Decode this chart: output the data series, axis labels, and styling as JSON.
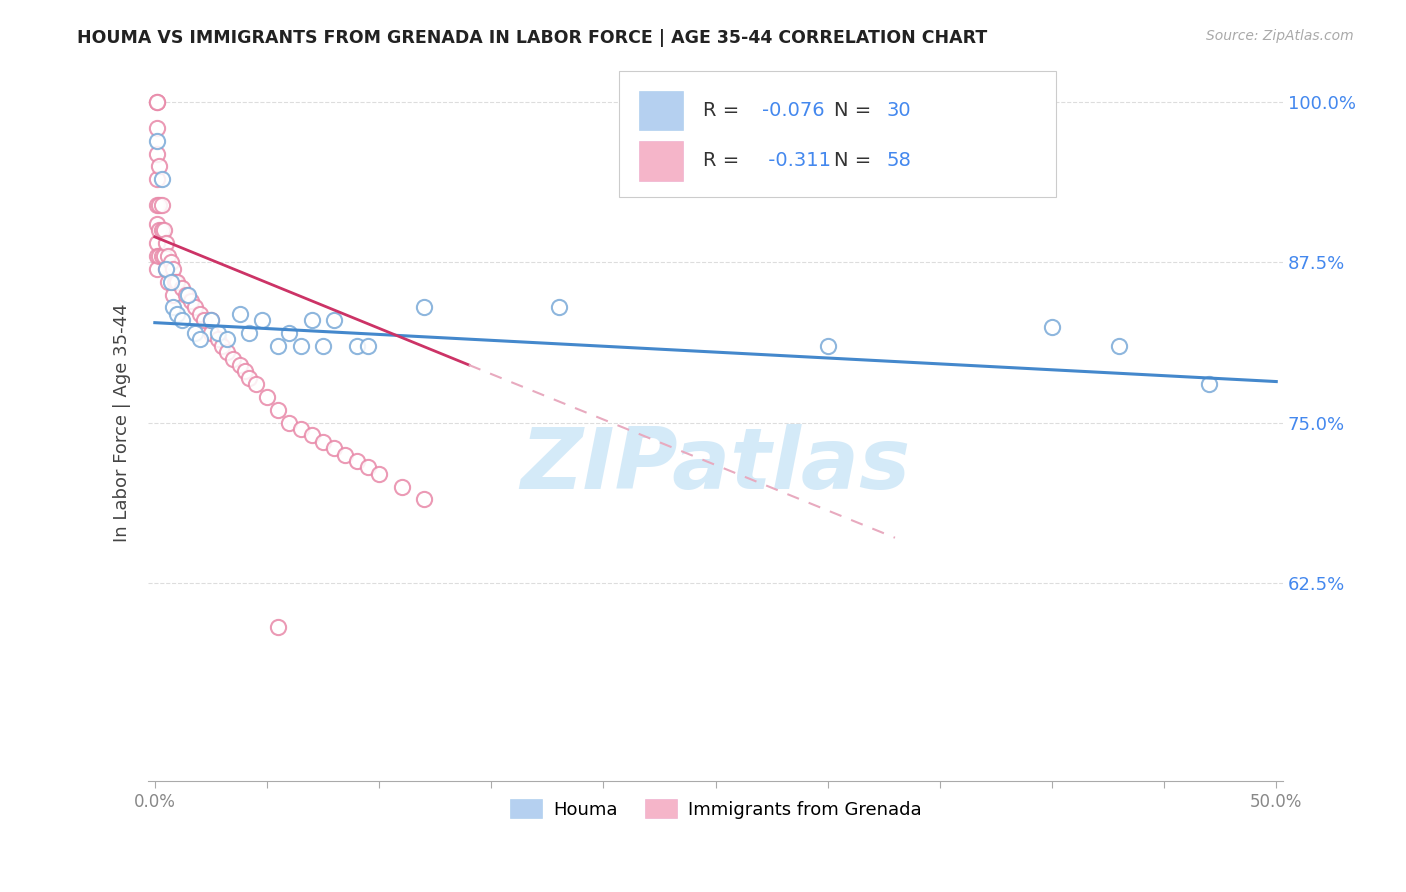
{
  "title": "HOUMA VS IMMIGRANTS FROM GRENADA IN LABOR FORCE | AGE 35-44 CORRELATION CHART",
  "source": "Source: ZipAtlas.com",
  "ylabel": "In Labor Force | Age 35-44",
  "xlim": [
    -0.003,
    0.503
  ],
  "ylim": [
    0.47,
    1.03
  ],
  "yticks": [
    0.625,
    0.75,
    0.875,
    1.0
  ],
  "ytick_labels": [
    "62.5%",
    "75.0%",
    "87.5%",
    "100.0%"
  ],
  "xtick_positions": [
    0.0,
    0.05,
    0.1,
    0.15,
    0.2,
    0.25,
    0.3,
    0.35,
    0.4,
    0.45,
    0.5
  ],
  "xtick_labels": [
    "0.0%",
    "",
    "",
    "",
    "",
    "",
    "",
    "",
    "",
    "",
    "50.0%"
  ],
  "legend_R1": "-0.076",
  "legend_N1": "30",
  "legend_R2": "-0.311",
  "legend_N2": "58",
  "houma_color": "#A8C8EE",
  "grenada_color": "#F4A8C0",
  "houma_edge_color": "#7AAAD8",
  "grenada_edge_color": "#E888A8",
  "trend_houma_color": "#4488CC",
  "trend_grenada_solid_color": "#CC3366",
  "trend_grenada_dash_color": "#E8AABF",
  "watermark_color": "#D0E8F8",
  "title_color": "#222222",
  "source_color": "#AAAAAA",
  "ytick_color": "#4488EE",
  "xtick_color": "#888888",
  "grid_color": "#DDDDDD",
  "houma_x": [
    0.001,
    0.003,
    0.005,
    0.007,
    0.008,
    0.01,
    0.012,
    0.015,
    0.018,
    0.02,
    0.025,
    0.028,
    0.032,
    0.038,
    0.042,
    0.048,
    0.055,
    0.06,
    0.065,
    0.07,
    0.075,
    0.08,
    0.09,
    0.095,
    0.12,
    0.18,
    0.3,
    0.4,
    0.43,
    0.47
  ],
  "houma_y": [
    0.97,
    0.94,
    0.87,
    0.86,
    0.84,
    0.835,
    0.83,
    0.85,
    0.82,
    0.815,
    0.83,
    0.82,
    0.815,
    0.835,
    0.82,
    0.83,
    0.81,
    0.82,
    0.81,
    0.83,
    0.81,
    0.83,
    0.81,
    0.81,
    0.84,
    0.84,
    0.81,
    0.825,
    0.81,
    0.78
  ],
  "grenada_x": [
    0.001,
    0.001,
    0.001,
    0.001,
    0.001,
    0.001,
    0.001,
    0.001,
    0.001,
    0.001,
    0.002,
    0.002,
    0.002,
    0.002,
    0.003,
    0.003,
    0.003,
    0.004,
    0.004,
    0.005,
    0.005,
    0.006,
    0.006,
    0.007,
    0.008,
    0.008,
    0.009,
    0.01,
    0.012,
    0.014,
    0.016,
    0.018,
    0.02,
    0.022,
    0.025,
    0.028,
    0.03,
    0.032,
    0.035,
    0.038,
    0.04,
    0.042,
    0.045,
    0.05,
    0.055,
    0.06,
    0.065,
    0.07,
    0.075,
    0.08,
    0.085,
    0.09,
    0.095,
    0.1,
    0.11,
    0.12,
    0.025,
    0.055
  ],
  "grenada_y": [
    1.0,
    1.0,
    0.98,
    0.96,
    0.94,
    0.92,
    0.905,
    0.89,
    0.88,
    0.87,
    0.95,
    0.92,
    0.9,
    0.88,
    0.92,
    0.9,
    0.88,
    0.9,
    0.88,
    0.89,
    0.87,
    0.88,
    0.86,
    0.875,
    0.87,
    0.85,
    0.86,
    0.86,
    0.855,
    0.85,
    0.845,
    0.84,
    0.835,
    0.83,
    0.82,
    0.815,
    0.81,
    0.805,
    0.8,
    0.795,
    0.79,
    0.785,
    0.78,
    0.77,
    0.76,
    0.75,
    0.745,
    0.74,
    0.735,
    0.73,
    0.725,
    0.72,
    0.715,
    0.71,
    0.7,
    0.69,
    0.83,
    0.59
  ],
  "houma_trend_x": [
    0.0,
    0.5
  ],
  "houma_trend_y": [
    0.828,
    0.782
  ],
  "grenada_solid_trend_x": [
    0.0,
    0.14
  ],
  "grenada_solid_trend_y": [
    0.895,
    0.795
  ],
  "grenada_dash_trend_x": [
    0.14,
    0.33
  ],
  "grenada_dash_trend_y": [
    0.795,
    0.66
  ]
}
